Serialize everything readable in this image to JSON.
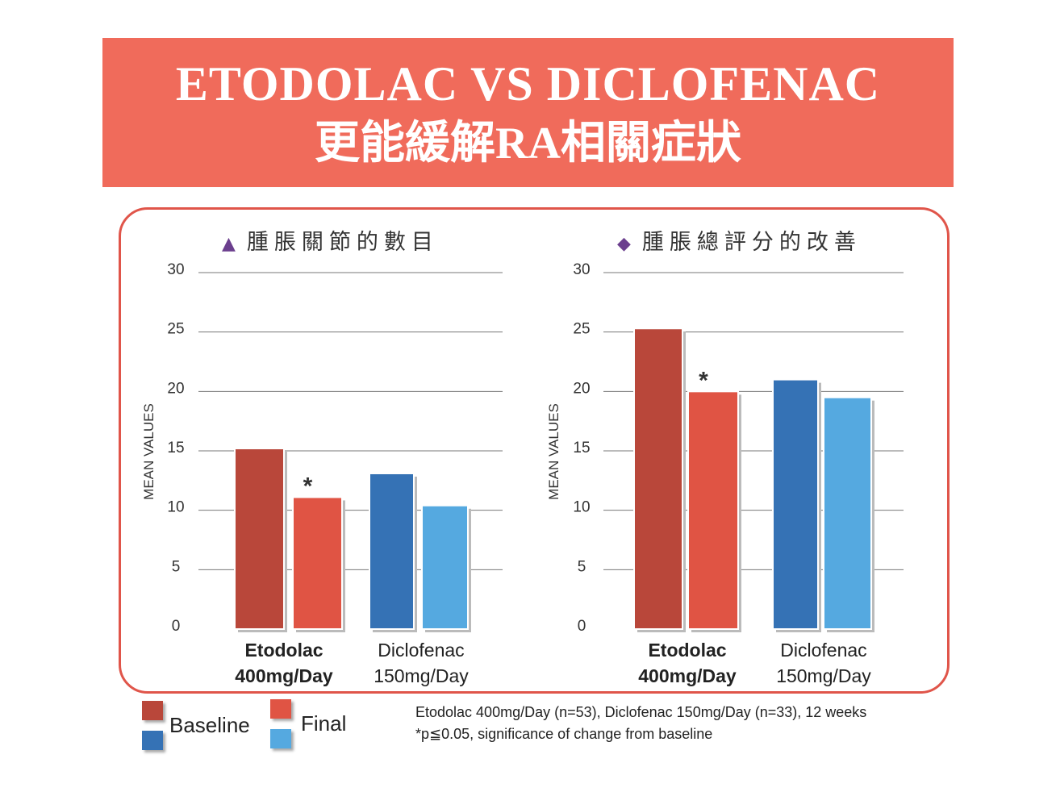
{
  "banner": {
    "line1": "ETODOLAC VS DICLOFENAC",
    "line2": "更能緩解RA相關症狀"
  },
  "legend": {
    "baseline": "Baseline",
    "final": "Final"
  },
  "footnote": {
    "line1": "Etodolac 400mg/Day (n=53), Diclofenac 150mg/Day (n=33), 12 weeks",
    "line2": "*p≦0.05, significance of change from baseline"
  },
  "colors": {
    "eto_baseline": "#B9473A",
    "eto_final": "#E05444",
    "diclo_baseline": "#3572B5",
    "diclo_final": "#55A9E0",
    "banner": "#F06B5B"
  },
  "chart_data": [
    {
      "type": "bar",
      "title": "腫脹關節的數目",
      "marker": "▲",
      "ylabel": "MEAN VALUES",
      "ylim": [
        0,
        30
      ],
      "yticks": [
        0,
        5,
        10,
        15,
        20,
        25,
        30
      ],
      "grid": true,
      "groups": [
        {
          "line1": "Etodolac",
          "line2": "400mg/Day",
          "bold": true
        },
        {
          "line1": "Diclofenac",
          "line2": "150mg/Day",
          "bold": false
        }
      ],
      "series": [
        {
          "name": "Etodolac Baseline",
          "values": [
            15.2
          ]
        },
        {
          "name": "Etodolac Final",
          "values": [
            11.1
          ]
        },
        {
          "name": "Diclofenac Baseline",
          "values": [
            13.1
          ]
        },
        {
          "name": "Diclofenac Final",
          "values": [
            10.4
          ]
        }
      ],
      "annotation": "*"
    },
    {
      "type": "bar",
      "title": "腫脹總評分的改善",
      "marker": "◆",
      "ylabel": "MEAN VALUES",
      "ylim": [
        0,
        30
      ],
      "yticks": [
        0,
        5,
        10,
        15,
        20,
        25,
        30
      ],
      "grid": true,
      "groups": [
        {
          "line1": "Etodolac",
          "line2": "400mg/Day",
          "bold": true
        },
        {
          "line1": "Diclofenac",
          "line2": "150mg/Day",
          "bold": false
        }
      ],
      "series": [
        {
          "name": "Etodolac Baseline",
          "values": [
            25.3
          ]
        },
        {
          "name": "Etodolac Final",
          "values": [
            20.0
          ]
        },
        {
          "name": "Diclofenac Baseline",
          "values": [
            21.0
          ]
        },
        {
          "name": "Diclofenac Final",
          "values": [
            19.5
          ]
        }
      ],
      "annotation": "*"
    }
  ]
}
